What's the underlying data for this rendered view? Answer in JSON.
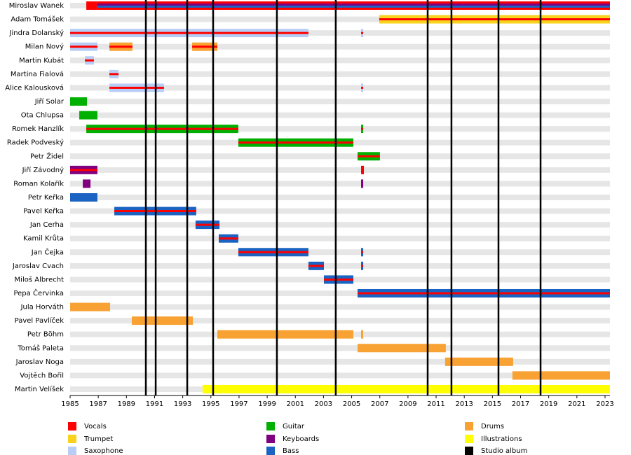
{
  "chart_data": {
    "type": "timeline",
    "xlim": [
      1985,
      2023.35
    ],
    "xticks": [
      1985,
      1987,
      1989,
      1991,
      1993,
      1995,
      1997,
      1999,
      2001,
      2003,
      2005,
      2007,
      2009,
      2011,
      2013,
      2015,
      2017,
      2019,
      2021,
      2023
    ],
    "roles": [
      {
        "name": "Vocals",
        "color": "#ff0000"
      },
      {
        "name": "Trumpet",
        "color": "#f8d21c"
      },
      {
        "name": "Saxophone",
        "color": "#b7cdf5"
      },
      {
        "name": "Guitar",
        "color": "#00b000"
      },
      {
        "name": "Keyboards",
        "color": "#800080"
      },
      {
        "name": "Bass",
        "color": "#1a63c2"
      },
      {
        "name": "Drums",
        "color": "#f7a232"
      },
      {
        "name": "Illustrations",
        "color": "#ffff00"
      }
    ],
    "albums": {
      "name": "Studio album",
      "color": "#000000",
      "years": [
        1990.38,
        1991.08,
        1993.32,
        1995.16,
        1999.69,
        2003.87,
        2010.4,
        2012.09,
        2015.43,
        2018.42
      ]
    },
    "members": [
      {
        "name": "Miroslav Wanek",
        "periods": [
          {
            "start": 1986.15,
            "end": 1986.9,
            "roles": [
              "Vocals"
            ]
          },
          {
            "start": 1986.9,
            "end": 2023.35,
            "roles": [
              "Vocals",
              "Keyboards",
              "Bass"
            ]
          }
        ]
      },
      {
        "name": "Adam Tomášek",
        "periods": [
          {
            "start": 2006.96,
            "end": 2023.35,
            "roles": [
              "Trumpet",
              "Vocals"
            ]
          }
        ]
      },
      {
        "name": "Jindra Dolanský",
        "periods": [
          {
            "start": 1985,
            "end": 2001.93,
            "roles": [
              "Saxophone",
              "Vocals"
            ]
          },
          {
            "start": 2005.67,
            "end": 2005.82,
            "roles": [
              "Saxophone",
              "Vocals"
            ]
          }
        ]
      },
      {
        "name": "Milan Nový",
        "periods": [
          {
            "start": 1985,
            "end": 1986.94,
            "roles": [
              "Saxophone",
              "Vocals"
            ]
          },
          {
            "start": 1987.79,
            "end": 1989.43,
            "roles": [
              "Drums",
              "Vocals"
            ]
          },
          {
            "start": 1993.67,
            "end": 1995.46,
            "roles": [
              "Drums",
              "Vocals"
            ]
          }
        ]
      },
      {
        "name": "Martin Kubát",
        "periods": [
          {
            "start": 1986.05,
            "end": 1986.69,
            "roles": [
              "Saxophone",
              "Vocals"
            ]
          }
        ]
      },
      {
        "name": "Martina Fialová",
        "periods": [
          {
            "start": 1987.79,
            "end": 1988.44,
            "roles": [
              "Saxophone",
              "Vocals"
            ]
          }
        ]
      },
      {
        "name": "Alice Kalousková",
        "periods": [
          {
            "start": 1987.79,
            "end": 1991.67,
            "roles": [
              "Saxophone",
              "Vocals"
            ]
          },
          {
            "start": 2005.67,
            "end": 2005.82,
            "roles": [
              "Saxophone",
              "Vocals"
            ]
          }
        ]
      },
      {
        "name": "Jiří Solar",
        "periods": [
          {
            "start": 1985,
            "end": 1986.2,
            "roles": [
              "Guitar"
            ]
          }
        ]
      },
      {
        "name": "Ota Chlupsa",
        "periods": [
          {
            "start": 1985.65,
            "end": 1986.94,
            "roles": [
              "Guitar"
            ]
          }
        ]
      },
      {
        "name": "Romek Hanzlík",
        "periods": [
          {
            "start": 1986.15,
            "end": 1996.95,
            "roles": [
              "Guitar",
              "Vocals"
            ]
          },
          {
            "start": 2005.67,
            "end": 2005.82,
            "roles": [
              "Guitar",
              "Vocals"
            ]
          }
        ]
      },
      {
        "name": "Radek Podveský",
        "periods": [
          {
            "start": 1996.95,
            "end": 2005.12,
            "roles": [
              "Guitar",
              "Vocals"
            ]
          }
        ]
      },
      {
        "name": "Petr Židel",
        "periods": [
          {
            "start": 2005.42,
            "end": 2007.01,
            "roles": [
              "Guitar",
              "Vocals"
            ]
          }
        ]
      },
      {
        "name": "Jiří Závodný",
        "periods": [
          {
            "start": 1985,
            "end": 1986.94,
            "roles": [
              "Keyboards",
              "Vocals"
            ]
          },
          {
            "start": 2005.67,
            "end": 2005.87,
            "roles": [
              "Vocals"
            ]
          }
        ]
      },
      {
        "name": "Roman Kolařík",
        "periods": [
          {
            "start": 1985.9,
            "end": 1986.45,
            "roles": [
              "Keyboards"
            ]
          },
          {
            "start": 2005.67,
            "end": 2005.82,
            "roles": [
              "Keyboards"
            ]
          }
        ]
      },
      {
        "name": "Petr Keřka",
        "periods": [
          {
            "start": 1985,
            "end": 1986.94,
            "roles": [
              "Bass"
            ]
          }
        ]
      },
      {
        "name": "Pavel Keřka",
        "periods": [
          {
            "start": 1988.14,
            "end": 1993.96,
            "roles": [
              "Bass",
              "Vocals"
            ]
          }
        ]
      },
      {
        "name": "Jan Cerha",
        "periods": [
          {
            "start": 1993.91,
            "end": 1995.61,
            "roles": [
              "Bass",
              "Vocals"
            ]
          }
        ]
      },
      {
        "name": "Kamil Krůta",
        "periods": [
          {
            "start": 1995.56,
            "end": 1996.95,
            "roles": [
              "Bass",
              "Vocals"
            ]
          }
        ]
      },
      {
        "name": "Jan Čejka",
        "periods": [
          {
            "start": 1996.95,
            "end": 2001.93,
            "roles": [
              "Bass",
              "Vocals"
            ]
          },
          {
            "start": 2005.67,
            "end": 2005.82,
            "roles": [
              "Bass",
              "Vocals"
            ]
          }
        ]
      },
      {
        "name": "Jaroslav Cvach",
        "periods": [
          {
            "start": 2001.93,
            "end": 2003.03,
            "roles": [
              "Bass",
              "Vocals"
            ]
          },
          {
            "start": 2005.67,
            "end": 2005.82,
            "roles": [
              "Bass",
              "Vocals"
            ]
          }
        ]
      },
      {
        "name": "Miloš Albrecht",
        "periods": [
          {
            "start": 2003.03,
            "end": 2005.12,
            "roles": [
              "Bass",
              "Vocals"
            ]
          }
        ]
      },
      {
        "name": "Pepa Červinka",
        "periods": [
          {
            "start": 2005.42,
            "end": 2023.35,
            "roles": [
              "Bass",
              "Vocals"
            ]
          }
        ]
      },
      {
        "name": "Jula Horváth",
        "periods": [
          {
            "start": 1985,
            "end": 1987.84,
            "roles": [
              "Drums"
            ]
          }
        ]
      },
      {
        "name": "Pavel Pavlíček",
        "periods": [
          {
            "start": 1989.38,
            "end": 1993.72,
            "roles": [
              "Drums"
            ]
          }
        ]
      },
      {
        "name": "Petr Böhm",
        "periods": [
          {
            "start": 1995.46,
            "end": 2005.12,
            "roles": [
              "Drums"
            ]
          },
          {
            "start": 2005.67,
            "end": 2005.82,
            "roles": [
              "Drums"
            ]
          }
        ]
      },
      {
        "name": "Tomáš Paleta",
        "periods": [
          {
            "start": 2005.42,
            "end": 2011.69,
            "roles": [
              "Drums"
            ]
          }
        ]
      },
      {
        "name": "Jaroslav Noga",
        "periods": [
          {
            "start": 2011.64,
            "end": 2016.47,
            "roles": [
              "Drums"
            ]
          }
        ]
      },
      {
        "name": "Vojtěch Bořil",
        "periods": [
          {
            "start": 2016.42,
            "end": 2023.35,
            "roles": [
              "Drums"
            ]
          }
        ]
      },
      {
        "name": "Martin Velíšek",
        "periods": [
          {
            "start": 1994.41,
            "end": 2023.35,
            "roles": [
              "Illustrations"
            ]
          }
        ]
      }
    ]
  }
}
